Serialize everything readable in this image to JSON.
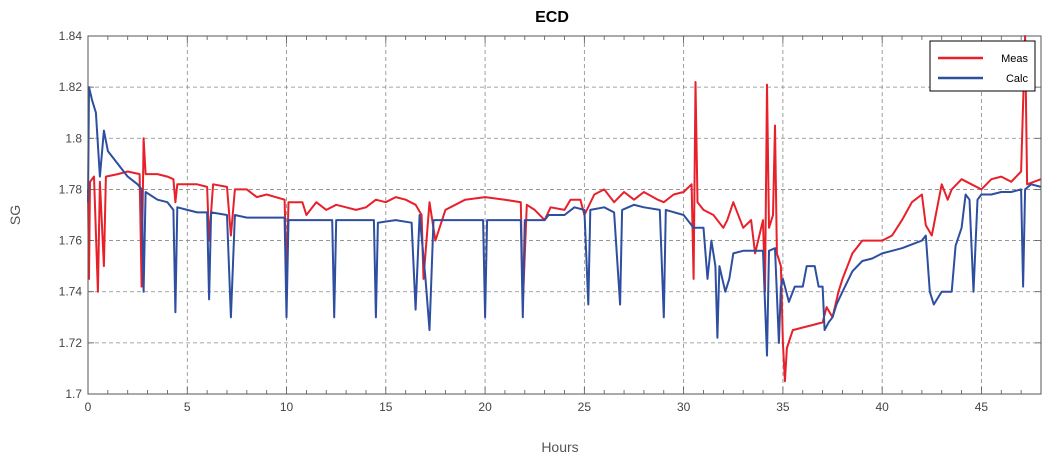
{
  "chart_data": {
    "type": "line",
    "title": "ECD",
    "xlabel": "Hours",
    "ylabel": "SG",
    "xlim": [
      0,
      48
    ],
    "ylim": [
      1.7,
      1.84
    ],
    "xticks": [
      "0",
      "5",
      "10",
      "15",
      "20",
      "25",
      "30",
      "35",
      "40",
      "45"
    ],
    "yticks": [
      "1.7",
      "1.72",
      "1.74",
      "1.76",
      "1.78",
      "1.8",
      "1.82",
      "1.84"
    ],
    "grid": true,
    "legend_position": "top-right",
    "series": [
      {
        "name": "Meas",
        "color": "#e8202a",
        "points": [
          [
            0,
            1.78
          ],
          [
            0.05,
            1.745
          ],
          [
            0.1,
            1.783
          ],
          [
            0.3,
            1.785
          ],
          [
            0.5,
            1.74
          ],
          [
            0.6,
            1.783
          ],
          [
            0.8,
            1.75
          ],
          [
            0.9,
            1.785
          ],
          [
            1.5,
            1.786
          ],
          [
            2,
            1.787
          ],
          [
            2.6,
            1.786
          ],
          [
            2.7,
            1.742
          ],
          [
            2.8,
            1.8
          ],
          [
            2.9,
            1.786
          ],
          [
            3.5,
            1.786
          ],
          [
            4,
            1.785
          ],
          [
            4.3,
            1.784
          ],
          [
            4.4,
            1.775
          ],
          [
            4.5,
            1.782
          ],
          [
            5.5,
            1.782
          ],
          [
            6,
            1.781
          ],
          [
            6.1,
            1.76
          ],
          [
            6.3,
            1.782
          ],
          [
            7,
            1.781
          ],
          [
            7.2,
            1.762
          ],
          [
            7.4,
            1.78
          ],
          [
            8,
            1.78
          ],
          [
            8.5,
            1.777
          ],
          [
            9,
            1.778
          ],
          [
            9.9,
            1.776
          ],
          [
            10,
            1.745
          ],
          [
            10.1,
            1.775
          ],
          [
            10.8,
            1.775
          ],
          [
            11,
            1.77
          ],
          [
            11.5,
            1.775
          ],
          [
            12,
            1.772
          ],
          [
            12.5,
            1.774
          ],
          [
            13,
            1.773
          ],
          [
            13.5,
            1.772
          ],
          [
            14,
            1.773
          ],
          [
            14.5,
            1.776
          ],
          [
            15,
            1.775
          ],
          [
            15.5,
            1.777
          ],
          [
            16,
            1.776
          ],
          [
            16.5,
            1.774
          ],
          [
            16.8,
            1.77
          ],
          [
            16.9,
            1.745
          ],
          [
            17.2,
            1.775
          ],
          [
            17.5,
            1.76
          ],
          [
            18,
            1.772
          ],
          [
            19,
            1.776
          ],
          [
            20,
            1.777
          ],
          [
            21,
            1.776
          ],
          [
            21.8,
            1.775
          ],
          [
            21.9,
            1.735
          ],
          [
            22.1,
            1.774
          ],
          [
            22.5,
            1.772
          ],
          [
            23,
            1.768
          ],
          [
            23.3,
            1.773
          ],
          [
            24,
            1.772
          ],
          [
            24.3,
            1.776
          ],
          [
            24.8,
            1.776
          ],
          [
            25,
            1.77
          ],
          [
            25.5,
            1.778
          ],
          [
            26,
            1.78
          ],
          [
            26.5,
            1.775
          ],
          [
            27,
            1.779
          ],
          [
            27.5,
            1.776
          ],
          [
            28,
            1.779
          ],
          [
            28.7,
            1.776
          ],
          [
            29,
            1.775
          ],
          [
            29.5,
            1.778
          ],
          [
            30,
            1.779
          ],
          [
            30.4,
            1.782
          ],
          [
            30.5,
            1.745
          ],
          [
            30.6,
            1.822
          ],
          [
            30.7,
            1.775
          ],
          [
            31,
            1.772
          ],
          [
            31.5,
            1.77
          ],
          [
            32,
            1.765
          ],
          [
            32.2,
            1.768
          ],
          [
            32.5,
            1.775
          ],
          [
            33,
            1.765
          ],
          [
            33.4,
            1.768
          ],
          [
            33.6,
            1.755
          ],
          [
            34,
            1.768
          ],
          [
            34.1,
            1.74
          ],
          [
            34.2,
            1.821
          ],
          [
            34.3,
            1.765
          ],
          [
            34.5,
            1.77
          ],
          [
            34.6,
            1.805
          ],
          [
            34.7,
            1.755
          ],
          [
            34.9,
            1.75
          ],
          [
            35,
            1.72
          ],
          [
            35.1,
            1.705
          ],
          [
            35.2,
            1.718
          ],
          [
            35.5,
            1.725
          ],
          [
            36,
            1.726
          ],
          [
            36.5,
            1.727
          ],
          [
            37,
            1.728
          ],
          [
            37.2,
            1.734
          ],
          [
            37.5,
            1.73
          ],
          [
            37.8,
            1.74
          ],
          [
            38,
            1.745
          ],
          [
            38.5,
            1.755
          ],
          [
            39,
            1.76
          ],
          [
            40,
            1.76
          ],
          [
            40.5,
            1.762
          ],
          [
            41,
            1.768
          ],
          [
            41.5,
            1.775
          ],
          [
            42,
            1.778
          ],
          [
            42.2,
            1.766
          ],
          [
            42.5,
            1.762
          ],
          [
            43,
            1.782
          ],
          [
            43.3,
            1.776
          ],
          [
            43.5,
            1.78
          ],
          [
            44,
            1.784
          ],
          [
            44.5,
            1.782
          ],
          [
            45,
            1.78
          ],
          [
            45.5,
            1.784
          ],
          [
            46,
            1.785
          ],
          [
            46.5,
            1.783
          ],
          [
            47,
            1.787
          ],
          [
            47.2,
            1.84
          ],
          [
            47.3,
            1.782
          ],
          [
            48,
            1.784
          ]
        ]
      },
      {
        "name": "Calc",
        "color": "#2e4ea0",
        "points": [
          [
            0,
            1.775
          ],
          [
            0.05,
            1.82
          ],
          [
            0.2,
            1.815
          ],
          [
            0.4,
            1.81
          ],
          [
            0.6,
            1.785
          ],
          [
            0.8,
            1.803
          ],
          [
            1,
            1.795
          ],
          [
            1.5,
            1.79
          ],
          [
            2,
            1.785
          ],
          [
            2.5,
            1.782
          ],
          [
            2.7,
            1.78
          ],
          [
            2.8,
            1.74
          ],
          [
            2.9,
            1.779
          ],
          [
            3.5,
            1.776
          ],
          [
            4,
            1.775
          ],
          [
            4.3,
            1.772
          ],
          [
            4.4,
            1.732
          ],
          [
            4.5,
            1.773
          ],
          [
            5,
            1.772
          ],
          [
            5.5,
            1.771
          ],
          [
            6,
            1.771
          ],
          [
            6.1,
            1.737
          ],
          [
            6.2,
            1.771
          ],
          [
            7,
            1.77
          ],
          [
            7.2,
            1.73
          ],
          [
            7.4,
            1.77
          ],
          [
            8,
            1.769
          ],
          [
            9,
            1.769
          ],
          [
            9.9,
            1.769
          ],
          [
            10,
            1.73
          ],
          [
            10.1,
            1.768
          ],
          [
            11,
            1.768
          ],
          [
            12,
            1.768
          ],
          [
            12.3,
            1.768
          ],
          [
            12.4,
            1.73
          ],
          [
            12.5,
            1.768
          ],
          [
            13.5,
            1.768
          ],
          [
            14.4,
            1.768
          ],
          [
            14.5,
            1.73
          ],
          [
            14.6,
            1.767
          ],
          [
            15.5,
            1.768
          ],
          [
            16.3,
            1.767
          ],
          [
            16.5,
            1.733
          ],
          [
            16.7,
            1.77
          ],
          [
            17,
            1.745
          ],
          [
            17.2,
            1.725
          ],
          [
            17.4,
            1.768
          ],
          [
            18,
            1.768
          ],
          [
            19,
            1.768
          ],
          [
            19.9,
            1.768
          ],
          [
            20,
            1.73
          ],
          [
            20.1,
            1.768
          ],
          [
            21,
            1.768
          ],
          [
            21.8,
            1.768
          ],
          [
            21.9,
            1.73
          ],
          [
            22,
            1.768
          ],
          [
            23,
            1.768
          ],
          [
            23.2,
            1.77
          ],
          [
            24,
            1.77
          ],
          [
            24.5,
            1.773
          ],
          [
            25,
            1.772
          ],
          [
            25.2,
            1.735
          ],
          [
            25.3,
            1.772
          ],
          [
            26,
            1.773
          ],
          [
            26.5,
            1.771
          ],
          [
            26.8,
            1.735
          ],
          [
            26.9,
            1.772
          ],
          [
            27.5,
            1.774
          ],
          [
            28,
            1.773
          ],
          [
            28.8,
            1.772
          ],
          [
            29,
            1.73
          ],
          [
            29.1,
            1.772
          ],
          [
            30,
            1.77
          ],
          [
            30.5,
            1.765
          ],
          [
            31,
            1.765
          ],
          [
            31.2,
            1.745
          ],
          [
            31.4,
            1.76
          ],
          [
            31.6,
            1.75
          ],
          [
            31.7,
            1.722
          ],
          [
            31.8,
            1.75
          ],
          [
            32.1,
            1.74
          ],
          [
            32.3,
            1.745
          ],
          [
            32.5,
            1.755
          ],
          [
            33,
            1.756
          ],
          [
            33.5,
            1.756
          ],
          [
            34,
            1.756
          ],
          [
            34.2,
            1.715
          ],
          [
            34.3,
            1.756
          ],
          [
            34.6,
            1.757
          ],
          [
            34.8,
            1.72
          ],
          [
            34.9,
            1.742
          ],
          [
            35,
            1.745
          ],
          [
            35.3,
            1.736
          ],
          [
            35.6,
            1.742
          ],
          [
            36,
            1.742
          ],
          [
            36.2,
            1.75
          ],
          [
            36.6,
            1.75
          ],
          [
            36.8,
            1.742
          ],
          [
            37,
            1.742
          ],
          [
            37.1,
            1.725
          ],
          [
            37.3,
            1.728
          ],
          [
            37.5,
            1.73
          ],
          [
            37.7,
            1.735
          ],
          [
            38,
            1.74
          ],
          [
            38.5,
            1.748
          ],
          [
            39,
            1.752
          ],
          [
            39.5,
            1.753
          ],
          [
            40,
            1.755
          ],
          [
            41,
            1.757
          ],
          [
            42,
            1.76
          ],
          [
            42.2,
            1.762
          ],
          [
            42.4,
            1.74
          ],
          [
            42.6,
            1.735
          ],
          [
            43,
            1.74
          ],
          [
            43.5,
            1.74
          ],
          [
            43.7,
            1.758
          ],
          [
            44,
            1.765
          ],
          [
            44.2,
            1.778
          ],
          [
            44.4,
            1.776
          ],
          [
            44.6,
            1.74
          ],
          [
            44.8,
            1.776
          ],
          [
            45,
            1.778
          ],
          [
            45.5,
            1.778
          ],
          [
            46,
            1.779
          ],
          [
            46.5,
            1.779
          ],
          [
            47,
            1.78
          ],
          [
            47.1,
            1.742
          ],
          [
            47.2,
            1.78
          ],
          [
            47.5,
            1.782
          ],
          [
            48,
            1.781
          ]
        ]
      }
    ]
  }
}
